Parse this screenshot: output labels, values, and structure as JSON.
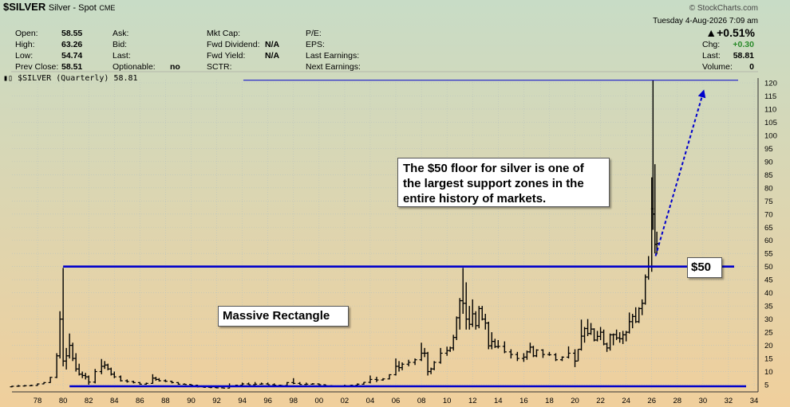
{
  "header": {
    "symbol": "$SILVER",
    "name": "Silver - Spot",
    "exchange": "CME",
    "date": "Tuesday  4-Aug-2026  7:09 am",
    "brand": "© StockCharts.com",
    "change_pct": "▲+0.51%",
    "quote_left": [
      {
        "label": "Open:",
        "value": "58.55"
      },
      {
        "label": "High:",
        "value": "63.26"
      },
      {
        "label": "Low:",
        "value": "54.74"
      },
      {
        "label": "Prev Close:",
        "value": "58.51"
      }
    ],
    "quote_mid": [
      {
        "label": "Ask:",
        "value": ""
      },
      {
        "label": "Bid:",
        "value": ""
      },
      {
        "label": "Last:",
        "value": ""
      },
      {
        "label": "Optionable:",
        "value": "no"
      }
    ],
    "quote_mid2": [
      {
        "label": "Mkt Cap:",
        "value": ""
      },
      {
        "label": "Fwd Dividend:",
        "value": "N/A"
      },
      {
        "label": "Fwd Yield:",
        "value": "N/A"
      },
      {
        "label": "SCTR:",
        "value": ""
      }
    ],
    "quote_mid3": [
      {
        "label": "P/E:",
        "value": ""
      },
      {
        "label": "EPS:",
        "value": ""
      },
      {
        "label": "Last Earnings:",
        "value": ""
      },
      {
        "label": "Next Earnings:",
        "value": ""
      }
    ],
    "quote_right": [
      {
        "label": "Chg:",
        "value": "+0.30"
      },
      {
        "label": "Last:",
        "value": "58.81"
      },
      {
        "label": "Volume:",
        "value": "0"
      }
    ],
    "legend": "$SILVER (Quarterly) 58.81"
  },
  "colors": {
    "up": "#2a8a2a",
    "line": "#0000cc",
    "bar": "#000000",
    "top_band": "#c8dcc6",
    "bottom_band": "#f0cf9c"
  },
  "annotations": {
    "note": "The $50 floor for silver is one of the largest support zones in the entire history of markets.",
    "rect_label": "Massive Rectangle",
    "level_label": "$50"
  },
  "chart_data": {
    "type": "ohlc",
    "title": "$SILVER (Quarterly) 58.81",
    "xlabel": "",
    "ylabel": "",
    "x_range": [
      1976.0,
      2034.5
    ],
    "ylim": [
      0,
      123
    ],
    "y_ticks": [
      5,
      10,
      15,
      20,
      25,
      30,
      35,
      40,
      45,
      50,
      55,
      60,
      65,
      70,
      75,
      80,
      85,
      90,
      95,
      100,
      105,
      110,
      115,
      120
    ],
    "x_tick_labels": [
      "78",
      "80",
      "82",
      "84",
      "86",
      "88",
      "90",
      "92",
      "94",
      "96",
      "98",
      "00",
      "02",
      "04",
      "06",
      "08",
      "10",
      "12",
      "14",
      "16",
      "18",
      "20",
      "22",
      "24",
      "26",
      "28",
      "30",
      "32",
      "34"
    ],
    "y_axis_side": "right",
    "grid": true,
    "resistance_level": 50,
    "support_level": 5,
    "high_line_level": 121,
    "projection_arrow": {
      "from": [
        2026.3,
        54
      ],
      "to": [
        2030.0,
        116
      ]
    },
    "bars": [
      [
        1976.0,
        4.2,
        4.6,
        4.0,
        4.4
      ],
      [
        1976.5,
        4.4,
        4.9,
        4.2,
        4.5
      ],
      [
        1977.0,
        4.5,
        4.9,
        4.3,
        4.6
      ],
      [
        1977.5,
        4.6,
        5.0,
        4.4,
        4.7
      ],
      [
        1978.0,
        4.7,
        5.5,
        4.6,
        5.3
      ],
      [
        1978.5,
        5.3,
        6.0,
        5.2,
        5.8
      ],
      [
        1979.0,
        5.8,
        8.0,
        5.7,
        7.8
      ],
      [
        1979.5,
        7.8,
        17.0,
        7.5,
        16.0
      ],
      [
        1979.75,
        16.0,
        33.0,
        15.0,
        30.0
      ],
      [
        1980.0,
        30.0,
        49.5,
        12.0,
        14.0
      ],
      [
        1980.25,
        14.0,
        19.0,
        10.8,
        16.0
      ],
      [
        1980.5,
        16.0,
        24.5,
        15.0,
        20.0
      ],
      [
        1980.75,
        20.0,
        21.0,
        14.0,
        15.0
      ],
      [
        1981.0,
        15.0,
        17.0,
        10.0,
        11.0
      ],
      [
        1981.25,
        11.0,
        13.0,
        8.5,
        9.0
      ],
      [
        1981.5,
        9.0,
        10.0,
        7.5,
        8.5
      ],
      [
        1981.75,
        8.5,
        9.5,
        7.0,
        8.0
      ],
      [
        1982.0,
        8.0,
        8.5,
        5.0,
        6.0
      ],
      [
        1982.5,
        6.0,
        11.0,
        5.5,
        10.0
      ],
      [
        1983.0,
        10.0,
        14.8,
        9.0,
        12.0
      ],
      [
        1983.25,
        12.0,
        14.0,
        11.0,
        12.5
      ],
      [
        1983.5,
        12.5,
        13.0,
        10.5,
        11.0
      ],
      [
        1983.75,
        11.0,
        11.5,
        8.5,
        9.0
      ],
      [
        1984.0,
        9.0,
        10.0,
        7.5,
        8.0
      ],
      [
        1984.5,
        8.0,
        8.5,
        6.2,
        6.5
      ],
      [
        1985.0,
        6.5,
        7.0,
        5.8,
        6.2
      ],
      [
        1985.5,
        6.2,
        6.5,
        5.5,
        5.8
      ],
      [
        1986.0,
        5.8,
        6.0,
        5.0,
        5.2
      ],
      [
        1986.5,
        5.2,
        5.8,
        5.0,
        5.5
      ],
      [
        1987.0,
        5.5,
        9.0,
        5.4,
        7.5
      ],
      [
        1987.25,
        7.5,
        8.0,
        6.5,
        7.0
      ],
      [
        1987.5,
        7.0,
        7.5,
        6.2,
        6.5
      ],
      [
        1988.0,
        6.5,
        7.0,
        6.0,
        6.3
      ],
      [
        1988.5,
        6.3,
        6.5,
        5.5,
        5.8
      ],
      [
        1989.0,
        5.8,
        6.0,
        5.0,
        5.2
      ],
      [
        1989.5,
        5.2,
        5.5,
        5.0,
        5.1
      ],
      [
        1990.0,
        5.1,
        5.2,
        4.5,
        4.8
      ],
      [
        1990.5,
        4.8,
        5.0,
        4.0,
        4.2
      ],
      [
        1991.0,
        4.2,
        4.5,
        3.8,
        4.0
      ],
      [
        1991.5,
        4.0,
        4.3,
        3.7,
        3.9
      ],
      [
        1992.0,
        3.9,
        4.2,
        3.6,
        3.8
      ],
      [
        1992.5,
        3.8,
        4.0,
        3.6,
        3.7
      ],
      [
        1993.0,
        3.7,
        5.5,
        3.6,
        4.5
      ],
      [
        1993.5,
        4.5,
        5.0,
        4.2,
        4.8
      ],
      [
        1994.0,
        4.8,
        5.8,
        4.6,
        5.3
      ],
      [
        1994.5,
        5.3,
        5.8,
        5.0,
        5.0
      ],
      [
        1995.0,
        5.0,
        6.0,
        4.8,
        5.2
      ],
      [
        1995.5,
        5.2,
        5.8,
        5.0,
        5.3
      ],
      [
        1996.0,
        5.3,
        5.8,
        5.0,
        5.0
      ],
      [
        1996.5,
        5.0,
        5.5,
        4.7,
        4.8
      ],
      [
        1997.0,
        4.8,
        5.0,
        4.6,
        4.7
      ],
      [
        1997.5,
        4.7,
        6.0,
        4.6,
        5.8
      ],
      [
        1998.0,
        5.8,
        7.5,
        5.2,
        5.5
      ],
      [
        1998.5,
        5.5,
        6.0,
        5.0,
        5.1
      ],
      [
        1999.0,
        5.1,
        5.8,
        4.9,
        5.2
      ],
      [
        1999.5,
        5.2,
        5.6,
        5.0,
        5.3
      ],
      [
        2000.0,
        5.3,
        5.5,
        4.8,
        5.0
      ],
      [
        2000.5,
        5.0,
        5.1,
        4.6,
        4.6
      ],
      [
        2001.0,
        4.6,
        4.8,
        4.2,
        4.4
      ],
      [
        2001.5,
        4.4,
        4.6,
        4.1,
        4.5
      ],
      [
        2002.0,
        4.5,
        5.0,
        4.4,
        4.6
      ],
      [
        2002.5,
        4.6,
        5.0,
        4.5,
        4.8
      ],
      [
        2003.0,
        4.8,
        5.5,
        4.4,
        5.2
      ],
      [
        2003.5,
        5.2,
        6.0,
        5.0,
        5.9
      ],
      [
        2004.0,
        5.9,
        8.5,
        5.5,
        7.0
      ],
      [
        2004.5,
        7.0,
        8.0,
        6.0,
        6.8
      ],
      [
        2005.0,
        6.8,
        7.5,
        6.5,
        7.2
      ],
      [
        2005.5,
        7.2,
        9.0,
        7.0,
        8.8
      ],
      [
        2006.0,
        8.8,
        15.0,
        8.5,
        12.0
      ],
      [
        2006.25,
        12.0,
        14.0,
        10.0,
        11.5
      ],
      [
        2006.5,
        11.5,
        13.5,
        10.5,
        12.8
      ],
      [
        2007.0,
        12.8,
        14.5,
        12.0,
        13.5
      ],
      [
        2007.5,
        13.5,
        15.0,
        12.5,
        14.5
      ],
      [
        2008.0,
        14.5,
        21.0,
        14.0,
        17.0
      ],
      [
        2008.25,
        17.0,
        19.0,
        15.5,
        17.0
      ],
      [
        2008.5,
        17.0,
        17.5,
        8.5,
        10.0
      ],
      [
        2008.75,
        10.0,
        11.5,
        9.0,
        11.0
      ],
      [
        2009.0,
        11.0,
        14.0,
        10.5,
        13.5
      ],
      [
        2009.5,
        13.5,
        19.0,
        13.0,
        17.0
      ],
      [
        2010.0,
        17.0,
        19.5,
        16.0,
        18.0
      ],
      [
        2010.25,
        18.0,
        19.5,
        17.5,
        19.0
      ],
      [
        2010.5,
        19.0,
        24.0,
        18.0,
        23.0
      ],
      [
        2010.75,
        23.0,
        31.0,
        22.0,
        30.5
      ],
      [
        2011.0,
        30.5,
        38.0,
        26.0,
        37.0
      ],
      [
        2011.25,
        37.0,
        49.5,
        32.0,
        36.0
      ],
      [
        2011.5,
        36.0,
        44.0,
        26.0,
        30.0
      ],
      [
        2011.75,
        30.0,
        35.0,
        26.0,
        28.0
      ],
      [
        2012.0,
        28.0,
        37.5,
        27.0,
        32.0
      ],
      [
        2012.25,
        32.0,
        33.0,
        26.0,
        27.5
      ],
      [
        2012.5,
        27.5,
        35.0,
        26.5,
        34.0
      ],
      [
        2012.75,
        34.0,
        35.0,
        29.5,
        30.0
      ],
      [
        2013.0,
        30.0,
        32.0,
        26.0,
        28.5
      ],
      [
        2013.25,
        28.5,
        29.0,
        18.5,
        19.8
      ],
      [
        2013.5,
        19.8,
        25.0,
        18.5,
        21.5
      ],
      [
        2013.75,
        21.5,
        22.5,
        19.0,
        19.5
      ],
      [
        2014.0,
        19.5,
        22.0,
        18.8,
        19.6
      ],
      [
        2014.5,
        19.6,
        21.5,
        17.0,
        17.5
      ],
      [
        2015.0,
        17.5,
        18.5,
        15.0,
        16.5
      ],
      [
        2015.5,
        16.5,
        17.5,
        14.0,
        15.0
      ],
      [
        2016.0,
        15.0,
        17.0,
        13.7,
        15.5
      ],
      [
        2016.25,
        15.5,
        18.0,
        14.5,
        17.5
      ],
      [
        2016.5,
        17.5,
        21.0,
        17.0,
        19.3
      ],
      [
        2016.75,
        19.3,
        19.8,
        15.5,
        16.0
      ],
      [
        2017.0,
        16.0,
        18.5,
        15.5,
        18.2
      ],
      [
        2017.5,
        18.2,
        18.5,
        15.2,
        16.5
      ],
      [
        2018.0,
        16.5,
        17.5,
        16.0,
        16.4
      ],
      [
        2018.5,
        16.4,
        17.0,
        14.0,
        14.5
      ],
      [
        2019.0,
        14.5,
        15.8,
        14.0,
        15.5
      ],
      [
        2019.5,
        15.5,
        19.6,
        15.0,
        17.0
      ],
      [
        2020.0,
        17.0,
        18.5,
        11.7,
        14.0
      ],
      [
        2020.25,
        14.0,
        18.5,
        14.0,
        18.5
      ],
      [
        2020.5,
        18.5,
        29.8,
        18.0,
        23.5
      ],
      [
        2020.75,
        23.5,
        27.0,
        21.0,
        26.4
      ],
      [
        2021.0,
        26.4,
        30.0,
        23.5,
        24.5
      ],
      [
        2021.25,
        24.5,
        28.5,
        24.0,
        26.2
      ],
      [
        2021.5,
        26.2,
        26.5,
        21.5,
        22.0
      ],
      [
        2021.75,
        22.0,
        25.5,
        21.5,
        23.4
      ],
      [
        2022.0,
        23.4,
        27.0,
        22.0,
        25.0
      ],
      [
        2022.25,
        25.0,
        26.0,
        20.0,
        20.5
      ],
      [
        2022.5,
        20.5,
        21.0,
        17.5,
        19.0
      ],
      [
        2022.75,
        19.0,
        24.5,
        18.0,
        24.0
      ],
      [
        2023.0,
        24.0,
        24.5,
        20.0,
        24.1
      ],
      [
        2023.25,
        24.1,
        26.0,
        22.0,
        22.8
      ],
      [
        2023.5,
        22.8,
        25.0,
        21.0,
        22.5
      ],
      [
        2023.75,
        22.5,
        25.5,
        20.5,
        24.0
      ],
      [
        2024.0,
        24.0,
        25.5,
        21.5,
        25.0
      ],
      [
        2024.25,
        25.0,
        32.5,
        24.5,
        29.0
      ],
      [
        2024.5,
        29.0,
        32.0,
        26.5,
        31.0
      ],
      [
        2024.75,
        31.0,
        34.5,
        28.5,
        29.0
      ],
      [
        2025.0,
        29.0,
        34.5,
        28.5,
        34.0
      ],
      [
        2025.25,
        34.0,
        37.5,
        31.5,
        36.0
      ],
      [
        2025.5,
        36.0,
        47.0,
        35.5,
        46.0
      ],
      [
        2025.75,
        46.0,
        54.0,
        45.0,
        50.0
      ],
      [
        2026.0,
        50.0,
        84.0,
        48.0,
        72.0
      ],
      [
        2026.1,
        72.0,
        121.0,
        64.0,
        70.0
      ],
      [
        2026.25,
        70.0,
        89.0,
        55.0,
        58.5
      ],
      [
        2026.4,
        58.5,
        63.3,
        54.7,
        58.8
      ]
    ]
  }
}
